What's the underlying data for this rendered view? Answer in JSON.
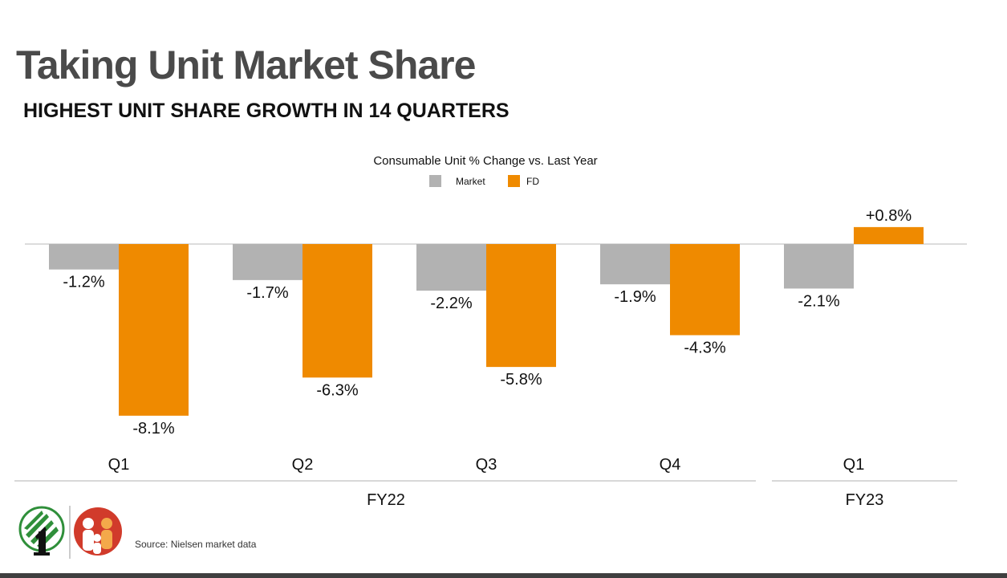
{
  "header": {
    "title": "Taking Unit Market Share",
    "subtitle": "HIGHEST UNIT SHARE GROWTH IN 14 QUARTERS"
  },
  "chart_data": {
    "type": "bar",
    "title": "Consumable Unit % Change vs. Last Year",
    "categories": [
      "Q1",
      "Q2",
      "Q3",
      "Q4",
      "Q1"
    ],
    "groups": [
      {
        "label": "FY22",
        "categories": [
          0,
          1,
          2,
          3
        ]
      },
      {
        "label": "FY23",
        "categories": [
          4
        ]
      }
    ],
    "series": [
      {
        "name": "Market",
        "color": "#b2b2b2",
        "values": [
          -1.2,
          -1.7,
          -2.2,
          -1.9,
          -2.1
        ],
        "labels": [
          "-1.2%",
          "-1.7%",
          "-2.2%",
          "-1.9%",
          "-2.1%"
        ]
      },
      {
        "name": "FD",
        "color": "#ef8a00",
        "values": [
          -8.1,
          -6.3,
          -5.8,
          -4.3,
          0.8
        ],
        "labels": [
          "-8.1%",
          "-6.3%",
          "-5.8%",
          "-4.3%",
          "+0.8%"
        ]
      }
    ],
    "ylim": [
      -8.1,
      0.8
    ],
    "grid": false,
    "legend_position": "top-center"
  },
  "footer": {
    "source": "Source: Nielsen market data"
  },
  "colors": {
    "title": "#4a4a4a",
    "market": "#b2b2b2",
    "fd": "#ef8a00",
    "axis": "#d0d0d0",
    "footer_bar": "#3f3f3f"
  },
  "logos": {
    "dollar_general": "dollar-tree-logo",
    "family_dollar": "family-logo"
  }
}
